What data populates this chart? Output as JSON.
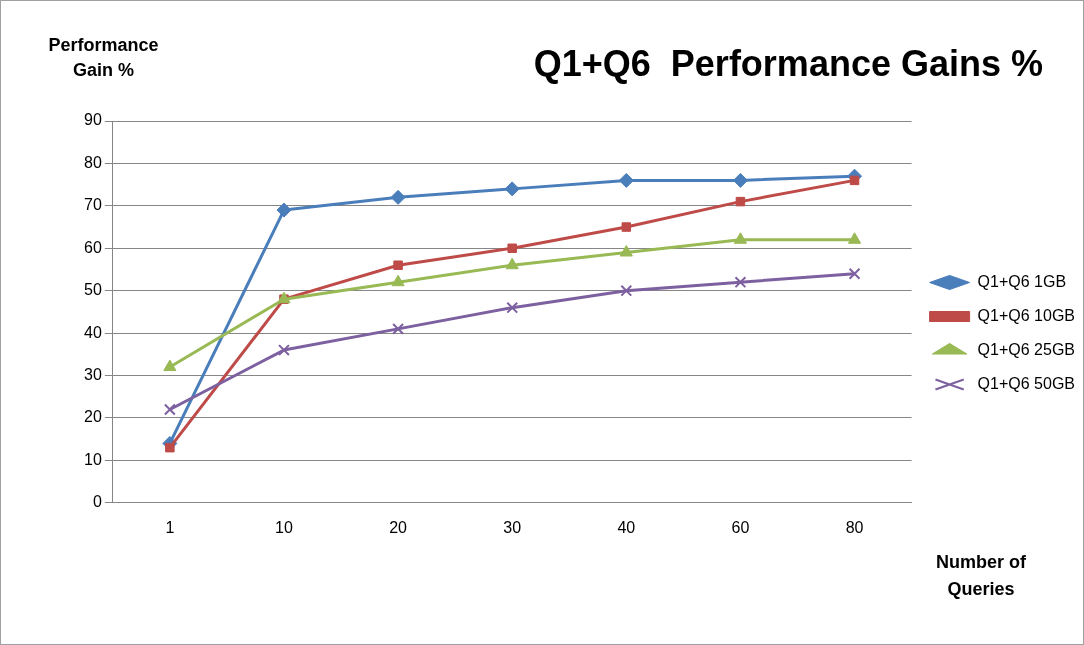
{
  "chart_data": {
    "type": "line",
    "title": "Q1+Q6  Performance Gains %",
    "ylabel": "Performance Gain %",
    "xlabel": "Number of Queries",
    "categories": [
      "1",
      "10",
      "20",
      "30",
      "40",
      "60",
      "80"
    ],
    "series": [
      {
        "name": "Q1+Q6 1GB",
        "color": "#4a7ebb",
        "marker": "diamond",
        "values": [
          14,
          69,
          72,
          74,
          76,
          76,
          77
        ]
      },
      {
        "name": "Q1+Q6 10GB",
        "color": "#be4b48",
        "marker": "square",
        "values": [
          13,
          48,
          56,
          60,
          65,
          71,
          76
        ]
      },
      {
        "name": "Q1+Q6 25GB",
        "color": "#98b954",
        "marker": "triangle",
        "values": [
          32,
          48,
          52,
          56,
          59,
          62,
          62
        ]
      },
      {
        "name": "Q1+Q6 50GB",
        "color": "#7d60a0",
        "marker": "cross",
        "values": [
          22,
          36,
          41,
          46,
          50,
          52,
          54
        ]
      }
    ],
    "ylim": [
      0,
      90
    ],
    "yticks": [
      0,
      10,
      20,
      30,
      40,
      50,
      60,
      70,
      80,
      90
    ],
    "grid": "y",
    "legend": "right",
    "line_style": "solid"
  }
}
